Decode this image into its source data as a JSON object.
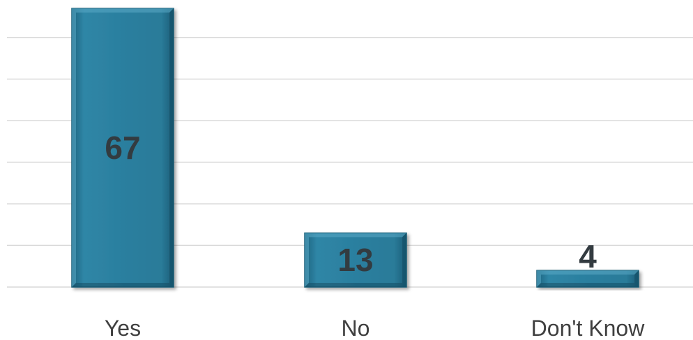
{
  "chart_data": {
    "type": "bar",
    "categories": [
      "Yes",
      "No",
      "Don't Know"
    ],
    "values": [
      67,
      13,
      4
    ],
    "title": "",
    "xlabel": "",
    "ylabel": "",
    "ylim": [
      0,
      70
    ],
    "gridlines": [
      0,
      10,
      20,
      30,
      40,
      50,
      60
    ],
    "grid": true,
    "legend": "none",
    "colors": {
      "bar": "#2a7d9c",
      "bar_light": "#3a91b0",
      "bar_dark": "#1d6480",
      "grid": "#d9d9d9",
      "value_text": "#333b40",
      "category_text": "#3f3f3f"
    }
  }
}
